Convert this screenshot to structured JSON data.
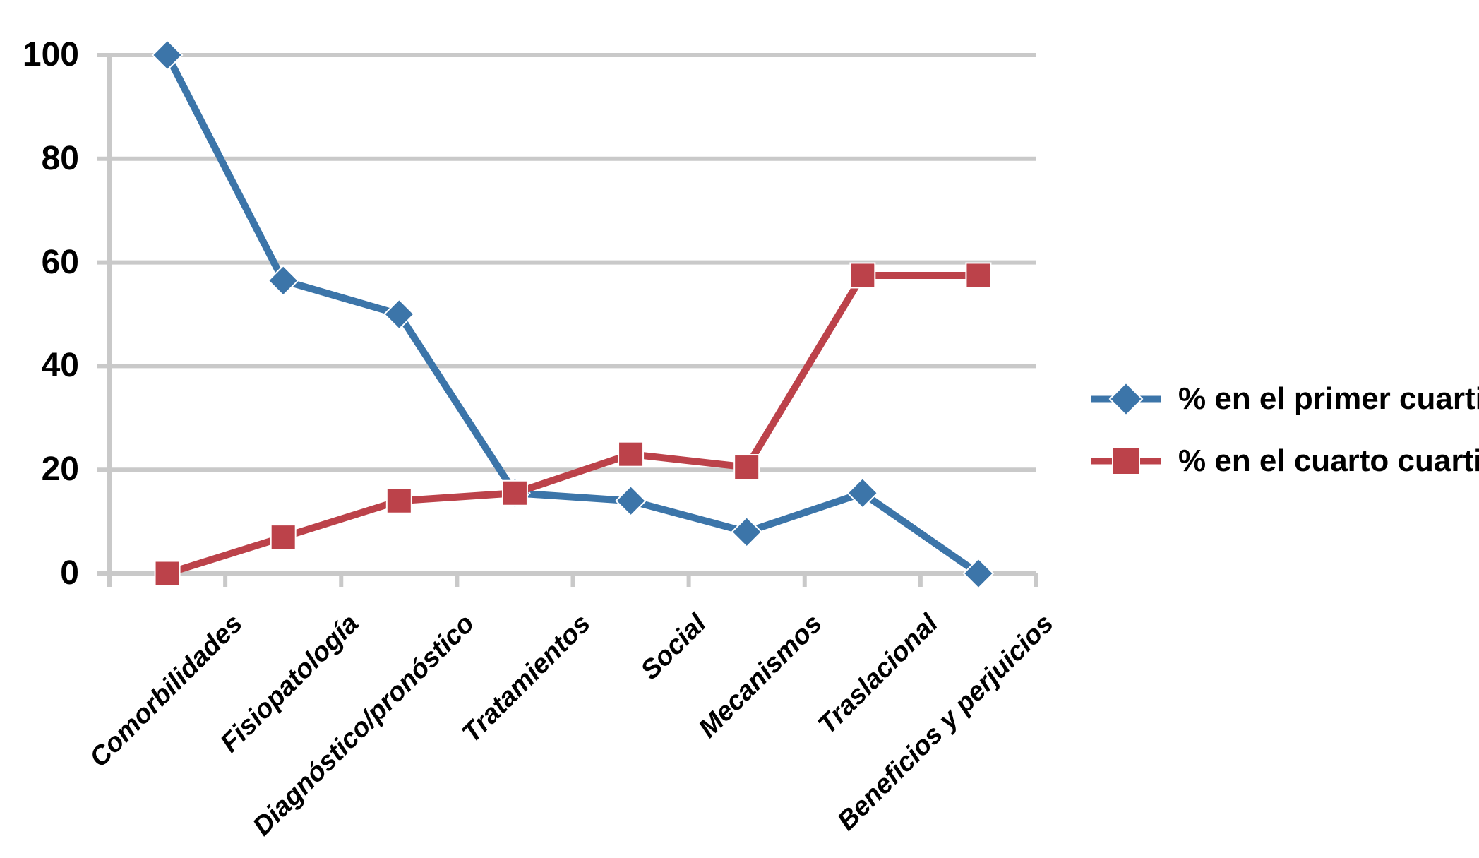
{
  "chart_data": {
    "type": "line",
    "categories": [
      "Comorbilidades",
      "Fisiopatología",
      "Diagnóstico/pronóstico",
      "Tratamientos",
      "Social",
      "Mecanismos",
      "Traslacional",
      "Beneficios y perjuicios"
    ],
    "series": [
      {
        "name": "% en el primer cuartil",
        "marker": "diamond",
        "color": "#3C75A9",
        "values": [
          100,
          56.5,
          50,
          15.5,
          14,
          8,
          15.5,
          0
        ]
      },
      {
        "name": "% en el cuarto cuartil",
        "marker": "square",
        "color": "#BC424A",
        "values": [
          0,
          7,
          14,
          15.5,
          23,
          20.5,
          57.5,
          57.5
        ]
      }
    ],
    "yticks": [
      0,
      20,
      40,
      60,
      80,
      100
    ],
    "ylim": [
      0,
      100
    ],
    "grid": "horizontal",
    "legend_position": "right",
    "gridline_color": "#C9C9C9",
    "label_color": "#000000",
    "background_color": "#FFFFFF"
  }
}
